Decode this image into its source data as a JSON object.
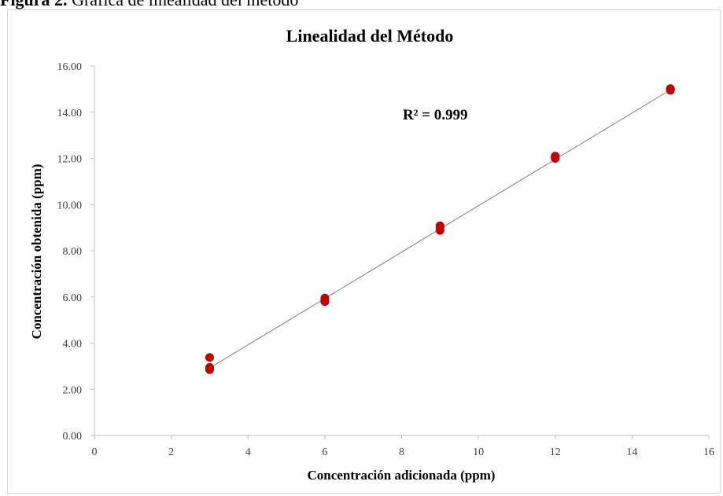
{
  "caption": {
    "prefix": "Figura 2.",
    "text": " Gráfica de linealidad del método"
  },
  "colors": {
    "points": "#c00000",
    "trendline": "#7f7f7f",
    "axis": "#bfbfbf"
  },
  "chart_data": {
    "type": "scatter",
    "title": "Linealidad del Método",
    "xlabel": "Concentración adicionada (ppm)",
    "ylabel": "Concentración obtenida (ppm)",
    "xlim": [
      0,
      16
    ],
    "ylim": [
      0,
      16
    ],
    "x_ticks": [
      "0",
      "2",
      "4",
      "6",
      "8",
      "10",
      "12",
      "14",
      "16"
    ],
    "y_ticks": [
      "0.00",
      "2.00",
      "4.00",
      "6.00",
      "8.00",
      "10.00",
      "12.00",
      "14.00",
      "16.00"
    ],
    "grid": false,
    "legend": "none",
    "series": [
      {
        "x": [
          3,
          3,
          3,
          6,
          6,
          6,
          9,
          9,
          9,
          12,
          12,
          12,
          15,
          15,
          15
        ],
        "y": [
          3.38,
          2.95,
          2.85,
          5.95,
          5.85,
          5.8,
          9.08,
          8.88,
          9.0,
          12.1,
          12.0,
          12.05,
          15.02,
          14.95,
          14.98
        ]
      }
    ],
    "trendline": {
      "type": "linear",
      "from": [
        3,
        2.92
      ],
      "to": [
        15,
        14.97
      ]
    },
    "annotations": [
      {
        "text": "R² = 0.999"
      }
    ]
  }
}
